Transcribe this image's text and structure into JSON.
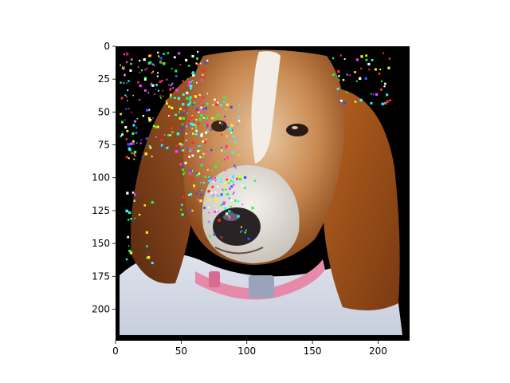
{
  "image": {
    "subject": "basset-hound-dog-photo",
    "noise_overlay": "adversarial-perturbation-speckles"
  },
  "chart_data": {
    "type": "image",
    "title": "",
    "xlabel": "",
    "ylabel": "",
    "xlim": [
      0,
      224
    ],
    "ylim": [
      224,
      0
    ],
    "xticks": [
      0,
      50,
      100,
      150,
      200
    ],
    "yticks": [
      0,
      25,
      50,
      75,
      100,
      125,
      150,
      175,
      200
    ],
    "xtick_labels": [
      "0",
      "50",
      "100",
      "150",
      "200"
    ],
    "ytick_labels": [
      "0",
      "25",
      "50",
      "75",
      "100",
      "125",
      "150",
      "175",
      "200"
    ],
    "grid": false
  },
  "colors": {
    "background": "#000000",
    "fur_brown": "#b8642a",
    "fur_white": "#e9e6e0",
    "nose": "#2a2326",
    "collar": "#e58aa8"
  }
}
